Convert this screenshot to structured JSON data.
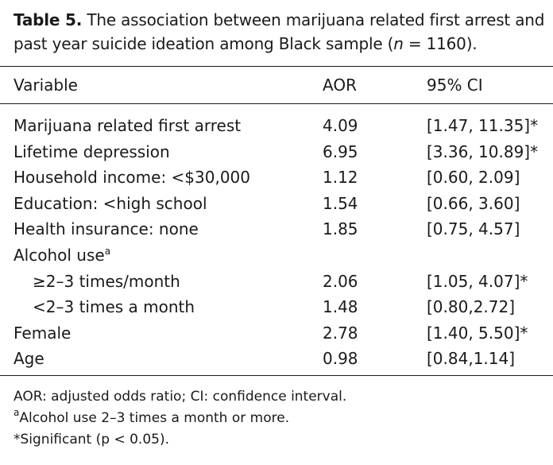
{
  "caption": {
    "label": "Table 5.",
    "text_before_n": "The association between marijuana related first arrest and past year suicide ideation among Black sample (",
    "n_symbol": "n",
    "text_after_n": " = 1160)."
  },
  "table": {
    "headers": [
      "Variable",
      "AOR",
      "95% CI"
    ],
    "rows": [
      {
        "variable": "Marijuana related first arrest",
        "aor": "4.09",
        "ci": "[1.47, 11.35]*"
      },
      {
        "variable": "Lifetime depression",
        "aor": "6.95",
        "ci": "[3.36, 10.89]*"
      },
      {
        "variable": "Household income: <$30,000",
        "aor": "1.12",
        "ci": "[0.60, 2.09]"
      },
      {
        "variable": "Education: <high school",
        "aor": "1.54",
        "ci": "[0.66, 3.60]"
      },
      {
        "variable": "Health insurance: none",
        "aor": "1.85",
        "ci": "[0.75, 4.57]"
      },
      {
        "variable": "Alcohol use",
        "sup": "a",
        "aor": "",
        "ci": ""
      },
      {
        "variable": "≥2–3 times/month",
        "aor": "2.06",
        "ci": "[1.05, 4.07]*",
        "indent": true
      },
      {
        "variable": "<2–3 times a month",
        "aor": "1.48",
        "ci": "[0.80,2.72]",
        "indent": true
      },
      {
        "variable": "Female",
        "aor": "2.78",
        "ci": "[1.40, 5.50]*"
      },
      {
        "variable": "Age",
        "aor": "0.98",
        "ci": "[0.84,1.14]"
      }
    ]
  },
  "notes": {
    "abbrev": "AOR: adjusted odds ratio; CI: confidence interval.",
    "footnote_a_mark": "a",
    "footnote_a": "Alcohol use 2–3 times a month or more.",
    "sig": "*Significant (p < 0.05)."
  }
}
